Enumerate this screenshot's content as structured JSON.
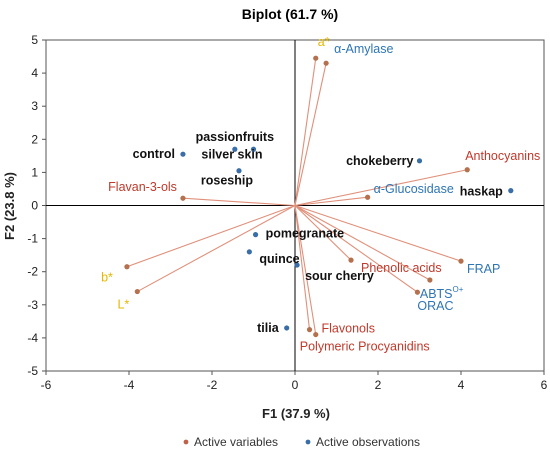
{
  "chart_data": {
    "type": "scatter",
    "subtype": "biplot",
    "title": "Biplot (61.7 %)",
    "xlabel": "F1 (37.9 %)",
    "ylabel": "F2 (23.8 %)",
    "xlim": [
      -6,
      6
    ],
    "ylim": [
      -5,
      5
    ],
    "x_ticks": [
      -6,
      -4,
      -2,
      0,
      2,
      4,
      6
    ],
    "y_ticks": [
      -5,
      -4,
      -3,
      -2,
      -1,
      0,
      1,
      2,
      3,
      4,
      5
    ],
    "grid": false,
    "legend_position": "bottom",
    "legend": [
      {
        "label": "Active variables",
        "color": "#C0624A"
      },
      {
        "label": "Active observations",
        "color": "#3A6EA8"
      }
    ],
    "colors": {
      "vector": "#E0907A",
      "variable_point": "#B5704E",
      "observation_point": "#3A6EA8",
      "label_red": "#C0392B",
      "label_blue": "#2E75B6",
      "label_yellow": "#E6B800",
      "label_black": "#111111"
    },
    "variables": [
      {
        "name": "a*",
        "x": 0.5,
        "y": 4.45,
        "color_role": "yellow"
      },
      {
        "name": "α-Amylase",
        "x": 0.75,
        "y": 4.3,
        "color_role": "blue"
      },
      {
        "name": "Anthocyanins",
        "x": 4.15,
        "y": 1.08,
        "color_role": "red"
      },
      {
        "name": "α-Glucosidase",
        "x": 1.75,
        "y": 0.25,
        "color_role": "blue"
      },
      {
        "name": "Flavan-3-ols",
        "x": -2.7,
        "y": 0.22,
        "color_role": "red"
      },
      {
        "name": "b*",
        "x": -4.05,
        "y": -1.85,
        "color_role": "yellow"
      },
      {
        "name": "L*",
        "x": -3.8,
        "y": -2.6,
        "color_role": "yellow"
      },
      {
        "name": "Phenolic acids",
        "x": 1.35,
        "y": -1.65,
        "color_role": "red"
      },
      {
        "name": "FRAP",
        "x": 4.0,
        "y": -1.68,
        "color_role": "blue"
      },
      {
        "name": "ABTS",
        "superscript": "O+",
        "x": 3.25,
        "y": -2.25,
        "color_role": "blue"
      },
      {
        "name": "ORAC",
        "x": 2.95,
        "y": -2.62,
        "color_role": "blue"
      },
      {
        "name": "Flavonols",
        "x": 0.35,
        "y": -3.75,
        "color_role": "red"
      },
      {
        "name": "Polymeric Procyanidins",
        "x": 0.5,
        "y": -3.9,
        "color_role": "red"
      }
    ],
    "observations": [
      {
        "name": "control",
        "x": -2.7,
        "y": 1.55
      },
      {
        "name": "passionfruits",
        "x": -1.45,
        "y": 1.7
      },
      {
        "name": "",
        "x": -1.0,
        "y": 1.7
      },
      {
        "name": "silver skin",
        "x": -1.35,
        "y": 1.05
      },
      {
        "name": "roseship",
        "x": -1.35,
        "y": 1.05,
        "label_only": true
      },
      {
        "name": "chokeberry",
        "x": 3.0,
        "y": 1.35
      },
      {
        "name": "haskap",
        "x": 5.2,
        "y": 0.45
      },
      {
        "name": "pomegranate",
        "x": -0.95,
        "y": -0.88
      },
      {
        "name": "quince",
        "x": -1.1,
        "y": -1.4
      },
      {
        "name": "sour cherry",
        "x": 0.05,
        "y": -1.8
      },
      {
        "name": "tilia",
        "x": -0.2,
        "y": -3.7
      }
    ]
  }
}
